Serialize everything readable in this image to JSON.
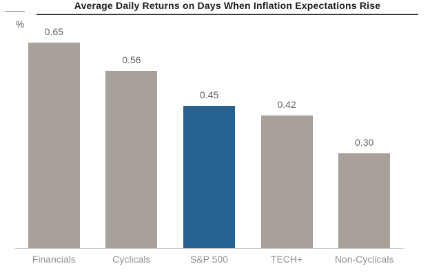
{
  "header": {
    "title": "Average Daily Returns on Days When Inflation Expectations Rise",
    "unit_label": "%"
  },
  "colors": {
    "bar_default": "#A8A19A",
    "bar_highlight": "#26618F",
    "value_label": "#636363",
    "category_label": "#8f8f8f",
    "title_text": "#1b1b1b",
    "axis_line": "#cdcdcb"
  },
  "chart_data": {
    "type": "bar",
    "title": "Average Daily Returns on Days When Inflation Expectations Rise",
    "unit": "%",
    "categories": [
      "Financials",
      "Cyclicals",
      "S&P 500",
      "TECH+",
      "Non-Cyclicals"
    ],
    "values": [
      0.65,
      0.56,
      0.45,
      0.42,
      0.3
    ],
    "value_labels": [
      "0.65",
      "0.56",
      "0.45",
      "0.42",
      "0.30"
    ],
    "bar_colors": [
      "#A8A19A",
      "#A8A19A",
      "#26618F",
      "#A8A19A",
      "#A8A19A"
    ],
    "highlight_index": 2,
    "highlight_category": "S&P 500",
    "xlabel": "",
    "ylabel": "%",
    "ylim": [
      0,
      0.72
    ],
    "grid": false,
    "legend": false,
    "value_labels_position": "above-bars"
  }
}
